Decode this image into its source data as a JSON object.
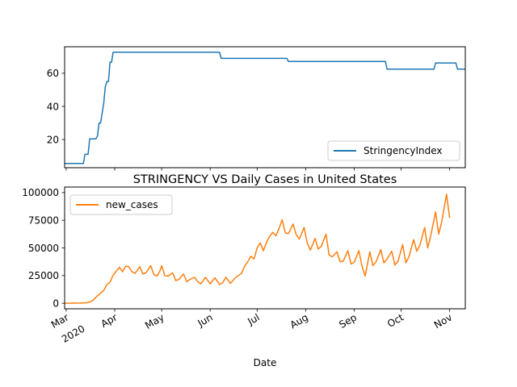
{
  "chart_data": [
    {
      "type": "line",
      "title": "",
      "xlabel": "",
      "ylabel": "",
      "ylim": [
        3,
        76
      ],
      "yticks": [
        20,
        40,
        60
      ],
      "legend": "bottom-right",
      "grid": false,
      "series": [
        {
          "name": "StringencyIndex",
          "color": "#1f77b4",
          "points": [
            [
              "2020-02-29",
              5.56
            ],
            [
              "2020-03-12",
              5.56
            ],
            [
              "2020-03-13",
              11.11
            ],
            [
              "2020-03-15",
              11.11
            ],
            [
              "2020-03-16",
              20.37
            ],
            [
              "2020-03-20",
              20.37
            ],
            [
              "2020-03-21",
              22.22
            ],
            [
              "2020-03-22",
              30.0
            ],
            [
              "2020-03-23",
              30.0
            ],
            [
              "2020-03-24",
              36.0
            ],
            [
              "2020-03-25",
              42.0
            ],
            [
              "2020-03-26",
              52.0
            ],
            [
              "2020-03-27",
              55.0
            ],
            [
              "2020-03-28",
              55.0
            ],
            [
              "2020-03-29",
              66.7
            ],
            [
              "2020-03-30",
              66.7
            ],
            [
              "2020-03-31",
              72.69
            ],
            [
              "2020-06-07",
              72.69
            ],
            [
              "2020-06-08",
              68.98
            ],
            [
              "2020-07-20",
              68.98
            ],
            [
              "2020-07-21",
              67.13
            ],
            [
              "2020-09-21",
              67.13
            ],
            [
              "2020-09-22",
              62.5
            ],
            [
              "2020-10-22",
              62.5
            ],
            [
              "2020-10-23",
              66.2
            ],
            [
              "2020-11-05",
              66.2
            ],
            [
              "2020-11-06",
              62.5
            ],
            [
              "2020-11-11",
              62.5
            ]
          ]
        }
      ]
    },
    {
      "type": "line",
      "title": "STRINGENCY VS Daily Cases in United States",
      "xlabel": "Date",
      "ylabel": "",
      "ylim": [
        -5000,
        105000
      ],
      "yticks": [
        "0",
        "25000",
        "50000",
        "75000",
        "100000"
      ],
      "legend": "top-left",
      "grid": false,
      "xticks": [
        {
          "date": "2020-03-01",
          "label": "Mar",
          "sub": "2020"
        },
        {
          "date": "2020-04-01",
          "label": "Apr",
          "sub": ""
        },
        {
          "date": "2020-05-01",
          "label": "May",
          "sub": ""
        },
        {
          "date": "2020-06-01",
          "label": "Jun",
          "sub": ""
        },
        {
          "date": "2020-07-01",
          "label": "Jul",
          "sub": ""
        },
        {
          "date": "2020-08-01",
          "label": "Aug",
          "sub": ""
        },
        {
          "date": "2020-09-01",
          "label": "Sep",
          "sub": ""
        },
        {
          "date": "2020-10-01",
          "label": "Oct",
          "sub": ""
        },
        {
          "date": "2020-11-01",
          "label": "Nov",
          "sub": ""
        }
      ],
      "series": [
        {
          "name": "new_cases",
          "color": "#ff7f0e",
          "points": [
            [
              "2020-02-29",
              0
            ],
            [
              "2020-03-10",
              150
            ],
            [
              "2020-03-14",
              500
            ],
            [
              "2020-03-16",
              1000
            ],
            [
              "2020-03-18",
              2500
            ],
            [
              "2020-03-20",
              5500
            ],
            [
              "2020-03-22",
              8000
            ],
            [
              "2020-03-24",
              10500
            ],
            [
              "2020-03-25",
              11500
            ],
            [
              "2020-03-27",
              17000
            ],
            [
              "2020-03-29",
              19000
            ],
            [
              "2020-03-31",
              25500
            ],
            [
              "2020-04-02",
              29000
            ],
            [
              "2020-04-04",
              32500
            ],
            [
              "2020-04-06",
              28500
            ],
            [
              "2020-04-08",
              33500
            ],
            [
              "2020-04-10",
              33000
            ],
            [
              "2020-04-12",
              28500
            ],
            [
              "2020-04-14",
              27000
            ],
            [
              "2020-04-17",
              33000
            ],
            [
              "2020-04-19",
              26500
            ],
            [
              "2020-04-21",
              27500
            ],
            [
              "2020-04-24",
              34000
            ],
            [
              "2020-04-26",
              26000
            ],
            [
              "2020-04-28",
              24500
            ],
            [
              "2020-04-30",
              29500
            ],
            [
              "2020-05-01",
              34000
            ],
            [
              "2020-05-03",
              25000
            ],
            [
              "2020-05-05",
              24500
            ],
            [
              "2020-05-08",
              27500
            ],
            [
              "2020-05-10",
              20500
            ],
            [
              "2020-05-12",
              21500
            ],
            [
              "2020-05-15",
              26500
            ],
            [
              "2020-05-17",
              19500
            ],
            [
              "2020-05-19",
              21500
            ],
            [
              "2020-05-22",
              23500
            ],
            [
              "2020-05-24",
              19500
            ],
            [
              "2020-05-26",
              17500
            ],
            [
              "2020-05-29",
              23500
            ],
            [
              "2020-06-01",
              17500
            ],
            [
              "2020-06-04",
              23000
            ],
            [
              "2020-06-07",
              17000
            ],
            [
              "2020-06-09",
              18500
            ],
            [
              "2020-06-11",
              23500
            ],
            [
              "2020-06-14",
              18000
            ],
            [
              "2020-06-17",
              23000
            ],
            [
              "2020-06-19",
              25000
            ],
            [
              "2020-06-21",
              27000
            ],
            [
              "2020-06-23",
              33500
            ],
            [
              "2020-06-25",
              37500
            ],
            [
              "2020-06-27",
              42500
            ],
            [
              "2020-06-29",
              40000
            ],
            [
              "2020-07-01",
              50000
            ],
            [
              "2020-07-03",
              54500
            ],
            [
              "2020-07-05",
              47500
            ],
            [
              "2020-07-07",
              55000
            ],
            [
              "2020-07-09",
              60500
            ],
            [
              "2020-07-11",
              64000
            ],
            [
              "2020-07-13",
              61000
            ],
            [
              "2020-07-15",
              67500
            ],
            [
              "2020-07-17",
              75500
            ],
            [
              "2020-07-19",
              63500
            ],
            [
              "2020-07-21",
              63000
            ],
            [
              "2020-07-24",
              71500
            ],
            [
              "2020-07-26",
              62000
            ],
            [
              "2020-07-28",
              58000
            ],
            [
              "2020-07-31",
              68500
            ],
            [
              "2020-08-02",
              54500
            ],
            [
              "2020-08-04",
              48000
            ],
            [
              "2020-08-07",
              58500
            ],
            [
              "2020-08-09",
              49000
            ],
            [
              "2020-08-11",
              51500
            ],
            [
              "2020-08-14",
              62500
            ],
            [
              "2020-08-16",
              43500
            ],
            [
              "2020-08-18",
              42000
            ],
            [
              "2020-08-21",
              46500
            ],
            [
              "2020-08-23",
              37500
            ],
            [
              "2020-08-25",
              38000
            ],
            [
              "2020-08-28",
              47500
            ],
            [
              "2020-08-30",
              35500
            ],
            [
              "2020-09-01",
              37000
            ],
            [
              "2020-09-04",
              47500
            ],
            [
              "2020-09-06",
              33500
            ],
            [
              "2020-09-08",
              24500
            ],
            [
              "2020-09-11",
              46500
            ],
            [
              "2020-09-13",
              34000
            ],
            [
              "2020-09-15",
              37500
            ],
            [
              "2020-09-18",
              48500
            ],
            [
              "2020-09-20",
              36500
            ],
            [
              "2020-09-22",
              40000
            ],
            [
              "2020-09-25",
              47000
            ],
            [
              "2020-09-27",
              34500
            ],
            [
              "2020-09-29",
              38000
            ],
            [
              "2020-10-02",
              53000
            ],
            [
              "2020-10-04",
              36500
            ],
            [
              "2020-10-06",
              42000
            ],
            [
              "2020-10-09",
              57500
            ],
            [
              "2020-10-11",
              47000
            ],
            [
              "2020-10-13",
              52500
            ],
            [
              "2020-10-16",
              68500
            ],
            [
              "2020-10-18",
              50000
            ],
            [
              "2020-10-20",
              61500
            ],
            [
              "2020-10-23",
              82500
            ],
            [
              "2020-10-25",
              62500
            ],
            [
              "2020-10-27",
              74000
            ],
            [
              "2020-10-30",
              98500
            ],
            [
              "2020-11-01",
              77000
            ]
          ]
        }
      ]
    }
  ]
}
